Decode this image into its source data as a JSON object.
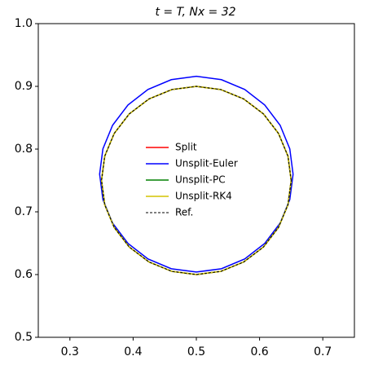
{
  "chart_data": {
    "type": "line",
    "title": "t = T, Nx = 32",
    "xlim": [
      0.25,
      0.75
    ],
    "ylim": [
      0.5,
      1.0
    ],
    "xticks": [
      0.3,
      0.4,
      0.5,
      0.6,
      0.7
    ],
    "yticks": [
      0.5,
      0.6,
      0.7,
      0.8,
      0.9,
      {
        "value": 1.0,
        "label": "1.0"
      }
    ],
    "grid": false,
    "legend": "center",
    "series": [
      {
        "name": "Split",
        "color": "#ff0000",
        "dash": false,
        "x": [
          0.65,
          0.6449,
          0.6299,
          0.6061,
          0.575,
          0.5388,
          0.5,
          0.4612,
          0.425,
          0.3939,
          0.3701,
          0.3551,
          0.35,
          0.3551,
          0.3701,
          0.3939,
          0.425,
          0.4612,
          0.5,
          0.5388,
          0.575,
          0.6061,
          0.6299,
          0.6449,
          0.65
        ],
        "values": [
          0.75,
          0.7888,
          0.825,
          0.8561,
          0.8799,
          0.8949,
          0.9,
          0.8949,
          0.8799,
          0.8561,
          0.825,
          0.7888,
          0.75,
          0.7112,
          0.675,
          0.6439,
          0.6201,
          0.6051,
          0.6,
          0.6051,
          0.6201,
          0.6439,
          0.675,
          0.7112,
          0.75
        ]
      },
      {
        "name": "Unsplit-Euler",
        "color": "#0000ff",
        "dash": false,
        "x": [
          0.653,
          0.6478,
          0.6325,
          0.6082,
          0.5765,
          0.5396,
          0.5,
          0.4604,
          0.4235,
          0.3918,
          0.3675,
          0.3522,
          0.347,
          0.3522,
          0.3675,
          0.3918,
          0.4235,
          0.4604,
          0.5,
          0.5396,
          0.5765,
          0.6082,
          0.6325,
          0.6478,
          0.653
        ],
        "values": [
          0.76,
          0.8004,
          0.838,
          0.8703,
          0.8951,
          0.9107,
          0.916,
          0.9107,
          0.8951,
          0.8703,
          0.838,
          0.8004,
          0.76,
          0.7196,
          0.682,
          0.6497,
          0.6249,
          0.6093,
          0.604,
          0.6093,
          0.6249,
          0.6497,
          0.682,
          0.7196,
          0.76
        ]
      },
      {
        "name": "Unsplit-PC",
        "color": "#008000",
        "dash": false,
        "x": [
          0.65,
          0.6449,
          0.6299,
          0.6061,
          0.575,
          0.5388,
          0.5,
          0.4612,
          0.425,
          0.3939,
          0.3701,
          0.3551,
          0.35,
          0.3551,
          0.3701,
          0.3939,
          0.425,
          0.4612,
          0.5,
          0.5388,
          0.575,
          0.6061,
          0.6299,
          0.6449,
          0.65
        ],
        "values": [
          0.75,
          0.7888,
          0.825,
          0.8561,
          0.8799,
          0.8949,
          0.9,
          0.8949,
          0.8799,
          0.8561,
          0.825,
          0.7888,
          0.75,
          0.7112,
          0.675,
          0.6439,
          0.6201,
          0.6051,
          0.6,
          0.6051,
          0.6201,
          0.6439,
          0.675,
          0.7112,
          0.75
        ]
      },
      {
        "name": "Unsplit-RK4",
        "color": "#d4c400",
        "dash": false,
        "x": [
          0.65,
          0.6449,
          0.6299,
          0.6061,
          0.575,
          0.5388,
          0.5,
          0.4612,
          0.425,
          0.3939,
          0.3701,
          0.3551,
          0.35,
          0.3551,
          0.3701,
          0.3939,
          0.425,
          0.4612,
          0.5,
          0.5388,
          0.575,
          0.6061,
          0.6299,
          0.6449,
          0.65
        ],
        "values": [
          0.75,
          0.7888,
          0.825,
          0.8561,
          0.8799,
          0.8949,
          0.9,
          0.8949,
          0.8799,
          0.8561,
          0.825,
          0.7888,
          0.75,
          0.7112,
          0.675,
          0.6439,
          0.6201,
          0.6051,
          0.6,
          0.6051,
          0.6201,
          0.6439,
          0.675,
          0.7112,
          0.75
        ]
      },
      {
        "name": "Ref.",
        "color": "#000000",
        "dash": true,
        "x": [
          0.65,
          0.6449,
          0.6299,
          0.6061,
          0.575,
          0.5388,
          0.5,
          0.4612,
          0.425,
          0.3939,
          0.3701,
          0.3551,
          0.35,
          0.3551,
          0.3701,
          0.3939,
          0.425,
          0.4612,
          0.5,
          0.5388,
          0.575,
          0.6061,
          0.6299,
          0.6449,
          0.65
        ],
        "values": [
          0.75,
          0.7888,
          0.825,
          0.8561,
          0.8799,
          0.8949,
          0.9,
          0.8949,
          0.8799,
          0.8561,
          0.825,
          0.7888,
          0.75,
          0.7112,
          0.675,
          0.6439,
          0.6201,
          0.6051,
          0.6,
          0.6051,
          0.6201,
          0.6439,
          0.675,
          0.7112,
          0.75
        ]
      }
    ]
  }
}
